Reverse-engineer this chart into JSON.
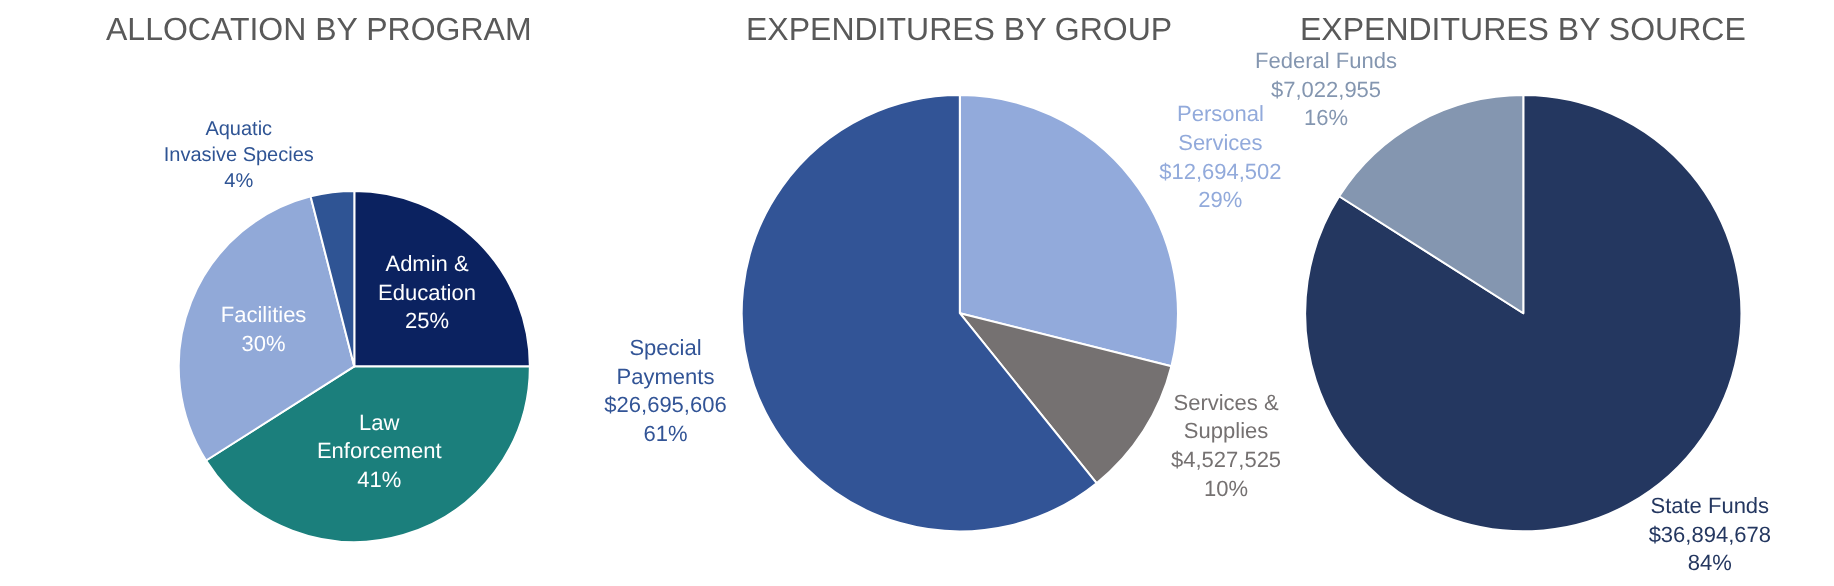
{
  "chart_data": [
    {
      "type": "pie",
      "title": "ALLOCATION BY PROGRAM",
      "categories": [
        "Admin &\nEducation",
        "Law\nEnforcement",
        "Facilities",
        "Aquatic\nInvasive Species"
      ],
      "values": [
        25,
        41,
        30,
        4
      ],
      "colors": [
        "#0b2260",
        "#1b7f7c",
        "#91a9d8",
        "#2f5494"
      ],
      "value_labels": [
        "25%",
        "41%",
        "30%",
        "4%"
      ]
    },
    {
      "type": "pie",
      "title": "EXPENDITURES BY GROUP",
      "categories": [
        "Personal\nServices",
        "Services &\nSupplies",
        "Special\nPayments"
      ],
      "values": [
        12694502,
        4527525,
        26695606
      ],
      "colors": [
        "#92aadb",
        "#757171",
        "#325496"
      ],
      "value_labels": [
        "$12,694,502\n29%",
        "$4,527,525\n10%",
        "$26,695,606\n61%"
      ]
    },
    {
      "type": "pie",
      "title": "EXPENDITURES BY SOURCE",
      "categories": [
        "State Funds",
        "Federal Funds"
      ],
      "values": [
        36894678,
        7022955
      ],
      "colors": [
        "#243760",
        "#8496b0"
      ],
      "value_labels": [
        "$36,894,678\n84%",
        "$7,022,955\n16%"
      ]
    }
  ]
}
